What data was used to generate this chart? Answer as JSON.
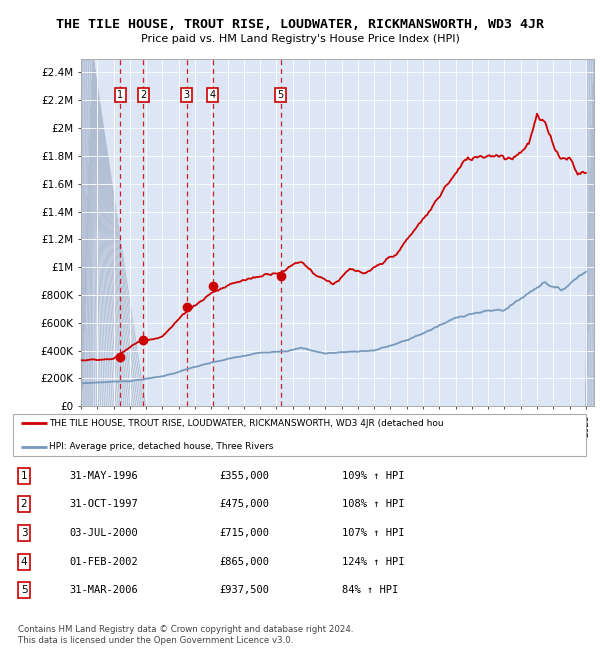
{
  "title": "THE TILE HOUSE, TROUT RISE, LOUDWATER, RICKMANSWORTH, WD3 4JR",
  "subtitle": "Price paid vs. HM Land Registry's House Price Index (HPI)",
  "title_fontsize": 9.5,
  "subtitle_fontsize": 8,
  "bg_color": "#dce6f5",
  "hatch_bg_color": "#c8d4e8",
  "line_color_red": "#cc0000",
  "line_color_blue": "#7799bb",
  "dot_color": "#cc0000",
  "ylim": [
    0,
    2500000
  ],
  "yticks": [
    0,
    200000,
    400000,
    600000,
    800000,
    1000000,
    1200000,
    1400000,
    1600000,
    1800000,
    2000000,
    2200000,
    2400000
  ],
  "ytick_labels": [
    "£0",
    "£200K",
    "£400K",
    "£600K",
    "£800K",
    "£1M",
    "£1.2M",
    "£1.4M",
    "£1.6M",
    "£1.8M",
    "£2M",
    "£2.2M",
    "£2.4M"
  ],
  "xlim_start": 1994.0,
  "xlim_end": 2025.5,
  "hatch_left_end": 1994.75,
  "hatch_right_start": 2025.0,
  "sale_points": [
    {
      "year": 1996.41,
      "price": 355000,
      "label": "1"
    },
    {
      "year": 1997.83,
      "price": 475000,
      "label": "2"
    },
    {
      "year": 2000.5,
      "price": 715000,
      "label": "3"
    },
    {
      "year": 2002.08,
      "price": 865000,
      "label": "4"
    },
    {
      "year": 2006.25,
      "price": 937500,
      "label": "5"
    }
  ],
  "legend_label_red": "THE TILE HOUSE, TROUT RISE, LOUDWATER, RICKMANSWORTH, WD3 4JR (detached hou",
  "legend_label_blue": "HPI: Average price, detached house, Three Rivers",
  "table_rows": [
    {
      "num": "1",
      "date": "31-MAY-1996",
      "price": "£355,000",
      "hpi": "109% ↑ HPI"
    },
    {
      "num": "2",
      "date": "31-OCT-1997",
      "price": "£475,000",
      "hpi": "108% ↑ HPI"
    },
    {
      "num": "3",
      "date": "03-JUL-2000",
      "price": "£715,000",
      "hpi": "107% ↑ HPI"
    },
    {
      "num": "4",
      "date": "01-FEB-2002",
      "price": "£865,000",
      "hpi": "124% ↑ HPI"
    },
    {
      "num": "5",
      "date": "31-MAR-2006",
      "price": "£937,500",
      "hpi": "84% ↑ HPI"
    }
  ],
  "footer": "Contains HM Land Registry data © Crown copyright and database right 2024.\nThis data is licensed under the Open Government Licence v3.0."
}
